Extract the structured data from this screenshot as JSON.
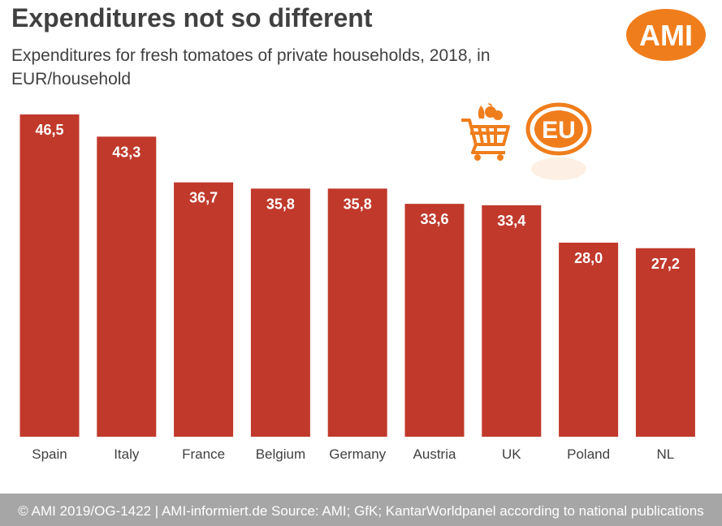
{
  "header": {
    "title": "Expenditures not so different",
    "subtitle": "Expenditures  for fresh tomatoes of private households, 2018, in EUR/household"
  },
  "logo": {
    "text": "AMI",
    "color": "#f07d1c"
  },
  "badges": {
    "eu_text": "EU",
    "cart_icon": "shopping-cart-with-vegetables-icon",
    "accent": "#f07d1c"
  },
  "chart_data": {
    "type": "bar",
    "categories": [
      "Spain",
      "Italy",
      "France",
      "Belgium",
      "Germany",
      "Austria",
      "UK",
      "Poland",
      "NL"
    ],
    "values": [
      46.5,
      43.3,
      36.7,
      35.8,
      35.8,
      33.6,
      33.4,
      28.0,
      27.2
    ],
    "value_labels": [
      "46,5",
      "43,3",
      "36,7",
      "35,8",
      "35,8",
      "33,6",
      "33,4",
      "28,0",
      "27,2"
    ],
    "ylim": [
      0,
      46.5
    ],
    "bar_color": "#c0392b",
    "grid": false,
    "legend": "none"
  },
  "footer": {
    "text": "© AMI 2019/OG-1422 | AMI-informiert.de Source: AMI;  GfK; KantarWorldpanel according to national publications"
  }
}
